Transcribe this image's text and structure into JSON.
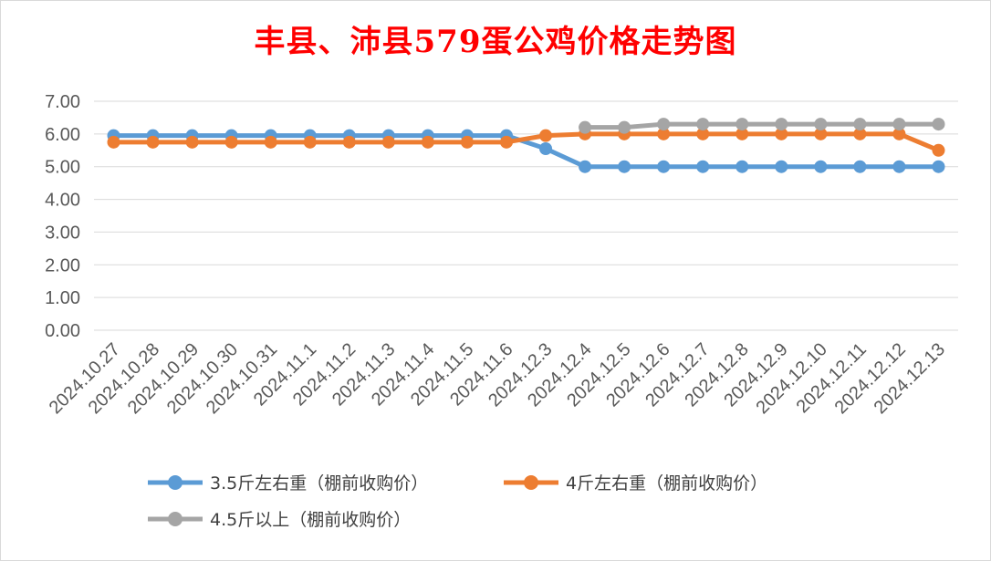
{
  "chart_data": {
    "type": "line",
    "title": "丰县、沛县579蛋公鸡价格走势图",
    "categories": [
      "2024.10.27",
      "2024.10.28",
      "2024.10.29",
      "2024.10.30",
      "2024.10.31",
      "2024.11.1",
      "2024.11.2",
      "2024.11.3",
      "2024.11.4",
      "2024.11.5",
      "2024.11.6",
      "2024.12.3",
      "2024.12.4",
      "2024.12.5",
      "2024.12.6",
      "2024.12.7",
      "2024.12.8",
      "2024.12.9",
      "2024.12.10",
      "2024.12.11",
      "2024.12.12",
      "2024.12.13"
    ],
    "ylim": [
      0,
      7
    ],
    "yticks": [
      "0.00",
      "1.00",
      "2.00",
      "3.00",
      "4.00",
      "5.00",
      "6.00",
      "7.00"
    ],
    "grid": true,
    "legend_position": "bottom",
    "series": [
      {
        "name": "3.5斤左右重（棚前收购价）",
        "color": "#5b9bd5",
        "values": [
          5.95,
          5.95,
          5.95,
          5.95,
          5.95,
          5.95,
          5.95,
          5.95,
          5.95,
          5.95,
          5.95,
          5.55,
          5.0,
          5.0,
          5.0,
          5.0,
          5.0,
          5.0,
          5.0,
          5.0,
          5.0,
          5.0
        ]
      },
      {
        "name": "4斤左右重（棚前收购价）",
        "color": "#ed7d31",
        "values": [
          5.75,
          5.75,
          5.75,
          5.75,
          5.75,
          5.75,
          5.75,
          5.75,
          5.75,
          5.75,
          5.75,
          5.95,
          6.0,
          6.0,
          6.0,
          6.0,
          6.0,
          6.0,
          6.0,
          6.0,
          6.0,
          5.5
        ]
      },
      {
        "name": "4.5斤以上（棚前收购价）",
        "color": "#a5a5a5",
        "values": [
          null,
          null,
          null,
          null,
          null,
          null,
          null,
          null,
          null,
          null,
          null,
          null,
          6.2,
          6.2,
          6.3,
          6.3,
          6.3,
          6.3,
          6.3,
          6.3,
          6.3,
          6.3
        ]
      }
    ]
  }
}
